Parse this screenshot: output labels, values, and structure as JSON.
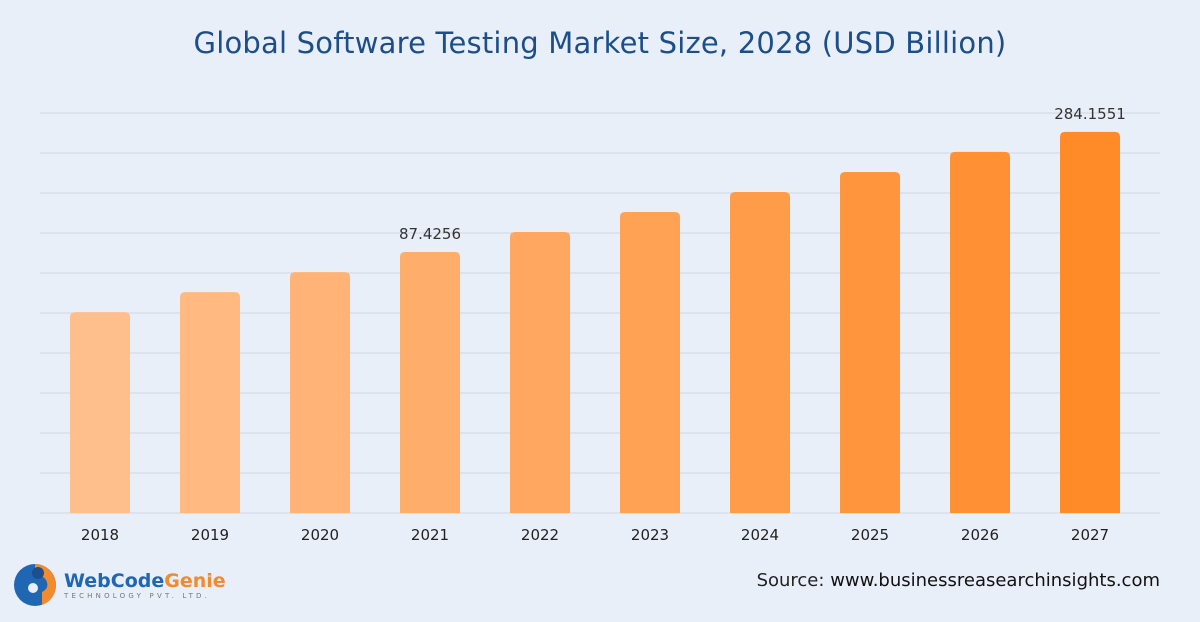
{
  "chart_data": {
    "type": "bar",
    "title": "Global Software Testing Market Size, 2028 (USD Billion)",
    "categories": [
      "2018",
      "2019",
      "2020",
      "2021",
      "2022",
      "2023",
      "2024",
      "2025",
      "2026",
      "2027"
    ],
    "values": [
      48.5,
      59.0,
      71.8,
      87.4256,
      106.4,
      129.5,
      157.6,
      191.8,
      233.5,
      284.1551
    ],
    "data_labels": {
      "2021": "87.4256",
      "2027": "284.1551"
    },
    "yscale": "log",
    "ylim": [
      6.76,
      342
    ],
    "grid": true,
    "xlabel": "",
    "ylabel": "",
    "colors": {
      "start": "#ffbf8c",
      "end": "#ff8a28",
      "grid": "#cfd6e2",
      "title": "#1c4e8a"
    }
  },
  "source": {
    "label": "Source:",
    "url": "www.businessreasearchinsights.com"
  },
  "logo": {
    "name_part1": "WebCode",
    "name_part2": "Genie",
    "tagline": "TECHNOLOGY PVT. LTD."
  }
}
